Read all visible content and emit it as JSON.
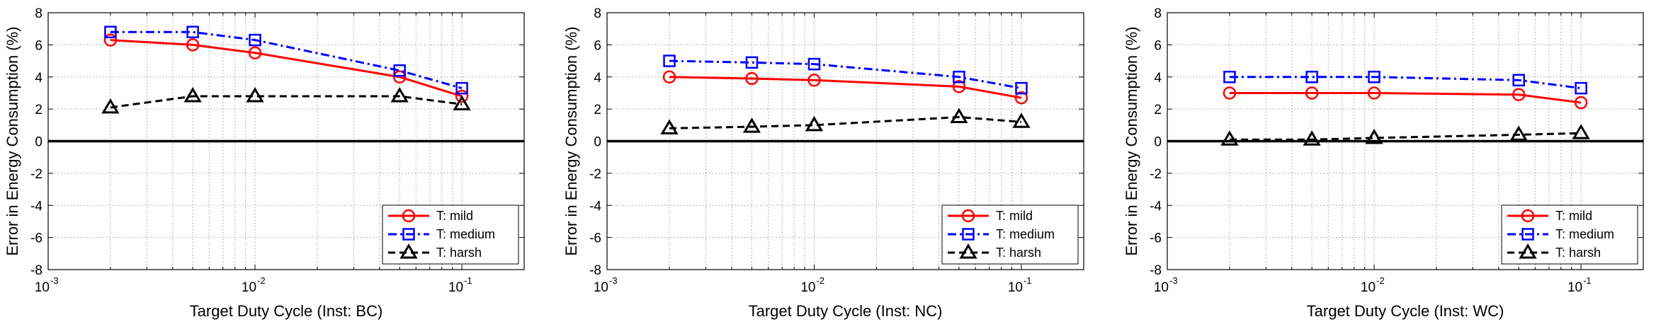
{
  "figure": {
    "ylabel": "Error in Energy Consumption (%)"
  },
  "chart_data": [
    {
      "type": "line",
      "xlabel": "Target Duty Cycle (Inst: BC)",
      "ylabel": "Error in Energy Consumption (%)",
      "xscale": "log",
      "xlim": [
        0.001,
        0.2
      ],
      "ylim": [
        -8,
        8
      ],
      "yticks": [
        -8,
        -6,
        -4,
        -2,
        0,
        2,
        4,
        6,
        8
      ],
      "xticks": [
        {
          "base": "10",
          "exp": "-3",
          "value": 0.001
        },
        {
          "base": "10",
          "exp": "-2",
          "value": 0.01
        },
        {
          "base": "10",
          "exp": "-1",
          "value": 0.1
        }
      ],
      "grid": true,
      "legend_position": "bottom-right",
      "x": [
        0.002,
        0.005,
        0.01,
        0.05,
        0.1
      ],
      "series": [
        {
          "name": "T: mild",
          "color": "#ff0000",
          "marker": "circle",
          "style": "solid",
          "values": [
            6.3,
            6.0,
            5.5,
            4.0,
            2.8
          ]
        },
        {
          "name": "T: medium",
          "color": "#0000ff",
          "marker": "square",
          "style": "dashdot",
          "values": [
            6.8,
            6.8,
            6.3,
            4.4,
            3.3
          ]
        },
        {
          "name": "T: harsh",
          "color": "#000000",
          "marker": "triangle",
          "style": "dashed",
          "values": [
            2.1,
            2.8,
            2.8,
            2.8,
            2.3
          ]
        }
      ]
    },
    {
      "type": "line",
      "xlabel": "Target Duty Cycle (Inst: NC)",
      "ylabel": "Error in Energy Consumption (%)",
      "xscale": "log",
      "xlim": [
        0.001,
        0.2
      ],
      "ylim": [
        -8,
        8
      ],
      "yticks": [
        -8,
        -6,
        -4,
        -2,
        0,
        2,
        4,
        6,
        8
      ],
      "xticks": [
        {
          "base": "10",
          "exp": "-3",
          "value": 0.001
        },
        {
          "base": "10",
          "exp": "-2",
          "value": 0.01
        },
        {
          "base": "10",
          "exp": "-1",
          "value": 0.1
        }
      ],
      "grid": true,
      "legend_position": "bottom-right",
      "x": [
        0.002,
        0.005,
        0.01,
        0.05,
        0.1
      ],
      "series": [
        {
          "name": "T: mild",
          "color": "#ff0000",
          "marker": "circle",
          "style": "solid",
          "values": [
            4.0,
            3.9,
            3.8,
            3.4,
            2.7
          ]
        },
        {
          "name": "T: medium",
          "color": "#0000ff",
          "marker": "square",
          "style": "dashdot",
          "values": [
            5.0,
            4.9,
            4.8,
            4.0,
            3.3
          ]
        },
        {
          "name": "T: harsh",
          "color": "#000000",
          "marker": "triangle",
          "style": "dashed",
          "values": [
            0.8,
            0.9,
            1.0,
            1.5,
            1.2
          ]
        }
      ]
    },
    {
      "type": "line",
      "xlabel": "Target Duty Cycle (Inst: WC)",
      "ylabel": "Error in Energy Consumption (%)",
      "xscale": "log",
      "xlim": [
        0.001,
        0.2
      ],
      "ylim": [
        -8,
        8
      ],
      "yticks": [
        -8,
        -6,
        -4,
        -2,
        0,
        2,
        4,
        6,
        8
      ],
      "xticks": [
        {
          "base": "10",
          "exp": "-3",
          "value": 0.001
        },
        {
          "base": "10",
          "exp": "-2",
          "value": 0.01
        },
        {
          "base": "10",
          "exp": "-1",
          "value": 0.1
        }
      ],
      "grid": true,
      "legend_position": "bottom-right",
      "x": [
        0.002,
        0.005,
        0.01,
        0.05,
        0.1
      ],
      "series": [
        {
          "name": "T: mild",
          "color": "#ff0000",
          "marker": "circle",
          "style": "solid",
          "values": [
            3.0,
            3.0,
            3.0,
            2.9,
            2.4
          ]
        },
        {
          "name": "T: medium",
          "color": "#0000ff",
          "marker": "square",
          "style": "dashdot",
          "values": [
            4.0,
            4.0,
            4.0,
            3.8,
            3.3
          ]
        },
        {
          "name": "T: harsh",
          "color": "#000000",
          "marker": "triangle",
          "style": "dashed",
          "values": [
            0.1,
            0.1,
            0.2,
            0.4,
            0.5
          ]
        }
      ]
    }
  ]
}
